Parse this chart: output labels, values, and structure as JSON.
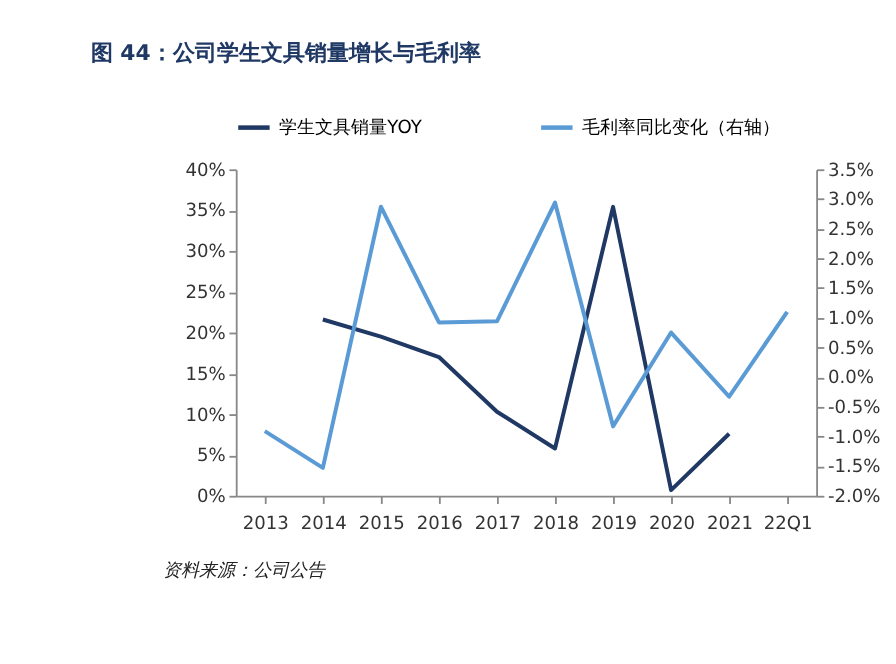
{
  "chart_data": {
    "type": "line",
    "title": "图 44：公司学生文具销量增长与毛利率",
    "categories": [
      "2013",
      "2014",
      "2015",
      "2016",
      "2017",
      "2018",
      "2019",
      "2020",
      "2021",
      "22Q1"
    ],
    "series": [
      {
        "name": "学生文具销量YOY",
        "color": "#203864",
        "values": [
          null,
          21.6,
          19.5,
          17.0,
          10.3,
          5.8,
          35.4,
          0.7,
          7.6,
          null
        ]
      },
      {
        "name": "毛利率同比变化（右轴）",
        "color": "#5b9bd5",
        "axis": "y2",
        "values": [
          -0.91,
          -1.53,
          2.87,
          0.92,
          0.94,
          2.94,
          -0.83,
          0.75,
          -0.33,
          1.1
        ]
      }
    ],
    "ylim": [
      0,
      40
    ],
    "yticks": [
      {
        "value": 0,
        "label": "0%"
      },
      {
        "value": 5,
        "label": "5%"
      },
      {
        "value": 10,
        "label": "10%"
      },
      {
        "value": 15,
        "label": "15%"
      },
      {
        "value": 20,
        "label": "20%"
      },
      {
        "value": 25,
        "label": "25%"
      },
      {
        "value": 30,
        "label": "30%"
      },
      {
        "value": 35,
        "label": "35%"
      },
      {
        "value": 40,
        "label": "40%"
      }
    ],
    "y2lim": [
      -2.0,
      3.5
    ],
    "y2ticks": [
      {
        "value": -2.0,
        "label": "-2.0%"
      },
      {
        "value": -1.5,
        "label": "-1.5%"
      },
      {
        "value": -1.0,
        "label": "-1.0%"
      },
      {
        "value": -0.5,
        "label": "-0.5%"
      },
      {
        "value": 0.0,
        "label": "0.0%"
      },
      {
        "value": 0.5,
        "label": "0.5%"
      },
      {
        "value": 1.0,
        "label": "1.0%"
      },
      {
        "value": 1.5,
        "label": "1.5%"
      },
      {
        "value": 2.0,
        "label": "2.0%"
      },
      {
        "value": 2.5,
        "label": "2.5%"
      },
      {
        "value": 3.0,
        "label": "3.0%"
      },
      {
        "value": 3.5,
        "label": "3.5%"
      }
    ],
    "annotations": [
      "资料来源：公司公告"
    ],
    "legend": "top",
    "grid": false,
    "marker": "none",
    "line_style": "solid"
  }
}
